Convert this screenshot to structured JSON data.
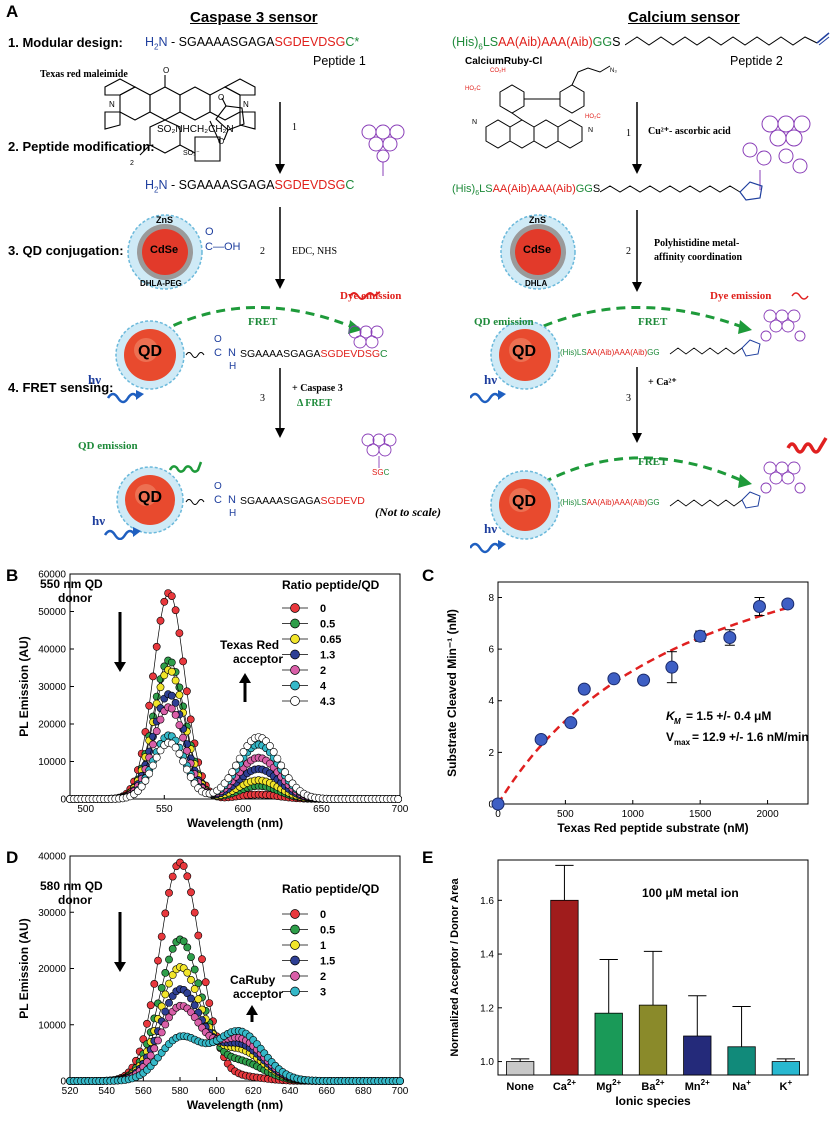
{
  "panelA": {
    "label": "A",
    "caspase_header": "Caspase 3 sensor",
    "calcium_header": "Calcium sensor",
    "step1": "1. Modular design:",
    "step2": "2. Peptide modification:",
    "step3": "3. QD conjugation:",
    "step4": "4. FRET sensing:",
    "h2n": "H",
    "h2n_sub": "2",
    "h2n_n": "N",
    "pep1_black": "- SGAAAASGAGA",
    "pep1_red": "SGDEVDSG",
    "pep1_green": "C*",
    "pep1_name": "Peptide 1",
    "texas_red": "Texas red maleimide",
    "pep2_his": "(His)",
    "pep2_his_sub": "6",
    "pep2_ls": "LS",
    "pep2_red": "AA(Aib)AAA(Aib)",
    "pep2_gg": "GG",
    "pep2_s": "S",
    "pep2_name": "Peptide 2",
    "calcium_ruby": "CalciumRuby-Cl",
    "arrow1_caspase": "1",
    "arrow1_calcium": "1",
    "cu_label": "Cu²⁺- ascorbic acid",
    "mod_seq_black": "- SGAAAASGAGA",
    "mod_seq_red": "SGDEVDSG",
    "mod_seq_green": "C",
    "arrow2_caspase": "2",
    "edc": "EDC, NHS",
    "arrow2_calcium": "2",
    "polyhis": "Polyhistidine metal-",
    "polyhis2": "affinity coordination",
    "zns": "ZnS",
    "cdse": "CdSe",
    "dhla_peg": "DHLA-PEG",
    "dhla": "DHLA",
    "cooh": "C—OH",
    "dye_emission": "Dye emission",
    "fret": "FRET",
    "qd": "QD",
    "qd_emission": "QD emission",
    "hv": "hν",
    "conj_seq_black": "SGAAAASGAGA",
    "conj_seq_red": "SGDEVDSG",
    "conj_seq_green": "C",
    "arrow3_caspase": "3",
    "plus_caspase": "+ Caspase 3",
    "delta_fret": "Δ FRET",
    "arrow3_calcium": "3",
    "plus_ca": "+ Ca²⁺",
    "cleaved_seq_black": "SGAAAASGAGA",
    "cleaved_seq_red": "SGDEVD",
    "sgc_red": "SG",
    "sgc_green": "C",
    "not_to_scale": "(Not to scale)",
    "amide_n": "N",
    "amide_h": "H",
    "amide_c": "C",
    "amide_o": "O"
  },
  "panelB": {
    "label": "B",
    "annot_donor": "550 nm QD",
    "annot_donor2": "donor",
    "annot_acceptor": "Texas Red",
    "annot_acceptor2": "acceptor",
    "legend_title": "Ratio peptide/QD"
  },
  "panelC": {
    "label": "C",
    "km_text": "K",
    "km_sub": "M",
    "km_val": "= 1.5 +/- 0.4 μM",
    "vmax_text": "V",
    "vmax_sub": "max",
    "vmax_val": "= 12.9 +/- 1.6 nM/min"
  },
  "panelD": {
    "label": "D",
    "annot_donor": "580 nm QD",
    "annot_donor2": "donor",
    "annot_acceptor": "CaRuby",
    "annot_acceptor2": "acceptor",
    "legend_title": "Ratio peptide/QD"
  },
  "panelE": {
    "label": "E",
    "annot": "100 μM metal ion"
  },
  "chart_data": [
    {
      "id": "B",
      "type": "line",
      "title": "",
      "xlabel": "Wavelength (nm)",
      "ylabel": "PL Emission (AU)",
      "xlim": [
        490,
        700
      ],
      "ylim": [
        0,
        60000
      ],
      "xticks": [
        500,
        550,
        600,
        650,
        700
      ],
      "yticks": [
        0,
        10000,
        20000,
        30000,
        40000,
        50000,
        60000
      ],
      "series": [
        {
          "name": "0",
          "color": "#e8383d",
          "donor_peak": 55000,
          "acceptor_peak": 1200
        },
        {
          "name": "0.5",
          "color": "#2e9e4a",
          "donor_peak": 37000,
          "acceptor_peak": 3500
        },
        {
          "name": "0.65",
          "color": "#f2e52a",
          "donor_peak": 34500,
          "acceptor_peak": 5000
        },
        {
          "name": "1.3",
          "color": "#2e3f94",
          "donor_peak": 28000,
          "acceptor_peak": 8000
        },
        {
          "name": "2",
          "color": "#d95fa8",
          "donor_peak": 24500,
          "acceptor_peak": 11000
        },
        {
          "name": "4",
          "color": "#35b8c8",
          "donor_peak": 17000,
          "acceptor_peak": 14500
        },
        {
          "name": "4.3",
          "color": "#ffffff",
          "donor_peak": 15000,
          "acceptor_peak": 16500
        }
      ],
      "donor_center_nm": 553,
      "acceptor_center_nm": 610
    },
    {
      "id": "C",
      "type": "scatter",
      "title": "",
      "xlabel": "Texas Red peptide substrate (nM)",
      "ylabel": "Substrate Cleaved Min⁻¹ (nM)",
      "xlim": [
        0,
        2300
      ],
      "ylim": [
        0,
        8.6
      ],
      "xticks": [
        0,
        500,
        1000,
        1500,
        2000
      ],
      "yticks": [
        0,
        2,
        4,
        6,
        8
      ],
      "points": [
        {
          "x": 0,
          "y": 0,
          "err": 0
        },
        {
          "x": 320,
          "y": 2.5,
          "err": 0
        },
        {
          "x": 540,
          "y": 3.15,
          "err": 0
        },
        {
          "x": 640,
          "y": 4.45,
          "err": 0
        },
        {
          "x": 860,
          "y": 4.85,
          "err": 0
        },
        {
          "x": 1080,
          "y": 4.8,
          "err": 0
        },
        {
          "x": 1290,
          "y": 5.3,
          "err": 0.6
        },
        {
          "x": 1500,
          "y": 6.5,
          "err": 0.2
        },
        {
          "x": 1720,
          "y": 6.45,
          "err": 0.3
        },
        {
          "x": 1940,
          "y": 7.65,
          "err": 0.35
        },
        {
          "x": 2150,
          "y": 7.75,
          "err": 0.1
        }
      ],
      "fit": {
        "vmax": 12.9,
        "km": 1500,
        "style": "dashed",
        "color": "#e02020"
      }
    },
    {
      "id": "D",
      "type": "line",
      "title": "",
      "xlabel": "Wavelength (nm)",
      "ylabel": "PL Emission (AU)",
      "xlim": [
        520,
        700
      ],
      "ylim": [
        0,
        40000
      ],
      "xticks": [
        520,
        540,
        560,
        580,
        600,
        620,
        640,
        660,
        680,
        700
      ],
      "yticks": [
        0,
        10000,
        20000,
        30000,
        40000
      ],
      "series": [
        {
          "name": "0",
          "color": "#e8383d",
          "donor_peak": 38800,
          "acceptor_peak": 800
        },
        {
          "name": "0.5",
          "color": "#2e9e4a",
          "donor_peak": 25000,
          "acceptor_peak": 3500
        },
        {
          "name": "1",
          "color": "#f2e52a",
          "donor_peak": 20000,
          "acceptor_peak": 5500
        },
        {
          "name": "1.5",
          "color": "#2e3f94",
          "donor_peak": 16000,
          "acceptor_peak": 6500
        },
        {
          "name": "2",
          "color": "#d95fa8",
          "donor_peak": 13000,
          "acceptor_peak": 7500
        },
        {
          "name": "3",
          "color": "#35b8c8",
          "donor_peak": 7500,
          "acceptor_peak": 8800
        }
      ],
      "donor_center_nm": 580,
      "acceptor_center_nm": 612
    },
    {
      "id": "E",
      "type": "bar",
      "title": "",
      "xlabel": "Ionic species",
      "ylabel": "Normalized Acceptor / Donor Area",
      "ylim": [
        0.95,
        1.75
      ],
      "yticks": [
        1.0,
        1.2,
        1.4,
        1.6
      ],
      "categories": [
        "None",
        "Ca",
        "Mg",
        "Ba",
        "Mn",
        "Na",
        "K"
      ],
      "charges": [
        "",
        "2+",
        "2+",
        "2+",
        "2+",
        "+",
        "+"
      ],
      "values": [
        1.0,
        1.6,
        1.18,
        1.21,
        1.095,
        1.055,
        1.0
      ],
      "errors": [
        0.01,
        0.13,
        0.2,
        0.2,
        0.15,
        0.15,
        0.01
      ],
      "colors": [
        "#c8c8c8",
        "#a01c1c",
        "#1a9a58",
        "#8a8a2a",
        "#242a7a",
        "#118a7a",
        "#28b8d0"
      ]
    }
  ]
}
